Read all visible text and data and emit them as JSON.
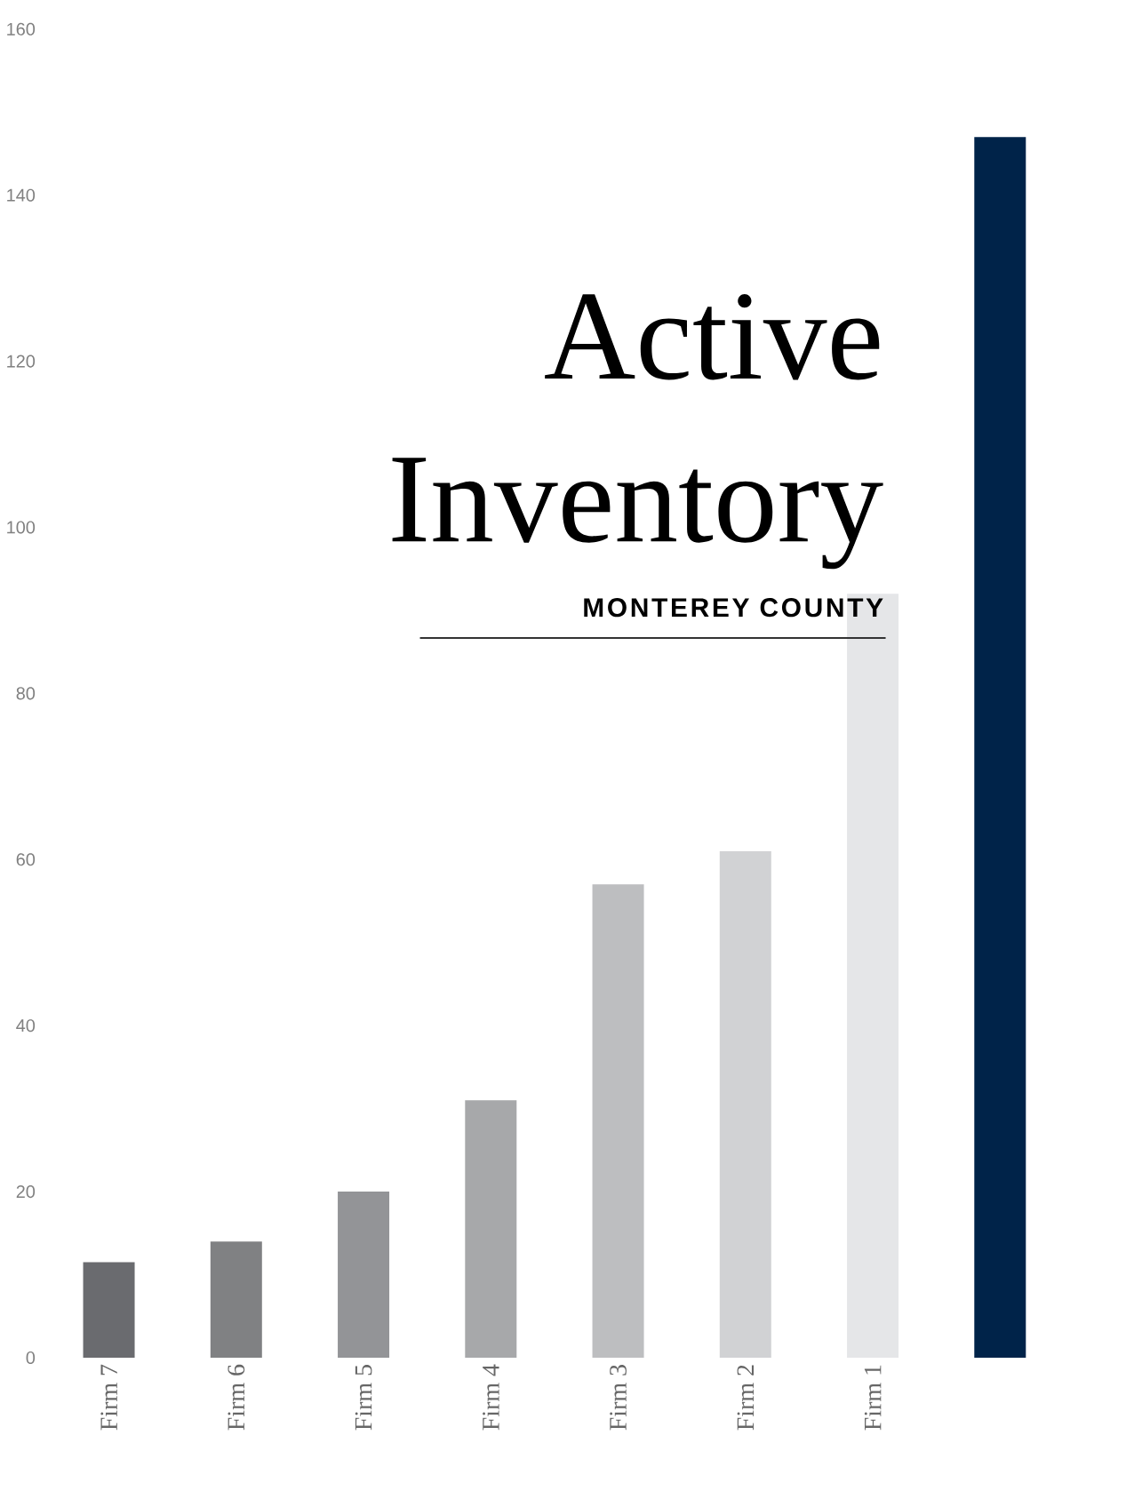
{
  "chart_data": {
    "type": "bar",
    "title": "Active Inventory",
    "subtitle": "MONTEREY COUNTY",
    "categories": [
      "Firm 7",
      "Firm 6",
      "Firm 5",
      "Firm 4",
      "Firm 3",
      "Firm 2",
      "Firm 1",
      null
    ],
    "values": [
      11.5,
      14,
      20,
      31,
      57,
      61,
      92,
      147
    ],
    "colors": [
      "#6a6b6f",
      "#808183",
      "#939497",
      "#a7a8aa",
      "#bdbec0",
      "#d1d2d4",
      "#e5e6e8",
      "#002349"
    ],
    "ylim": [
      0,
      160
    ],
    "yticks": [
      0,
      20,
      40,
      60,
      80,
      100,
      120,
      140,
      160
    ]
  }
}
